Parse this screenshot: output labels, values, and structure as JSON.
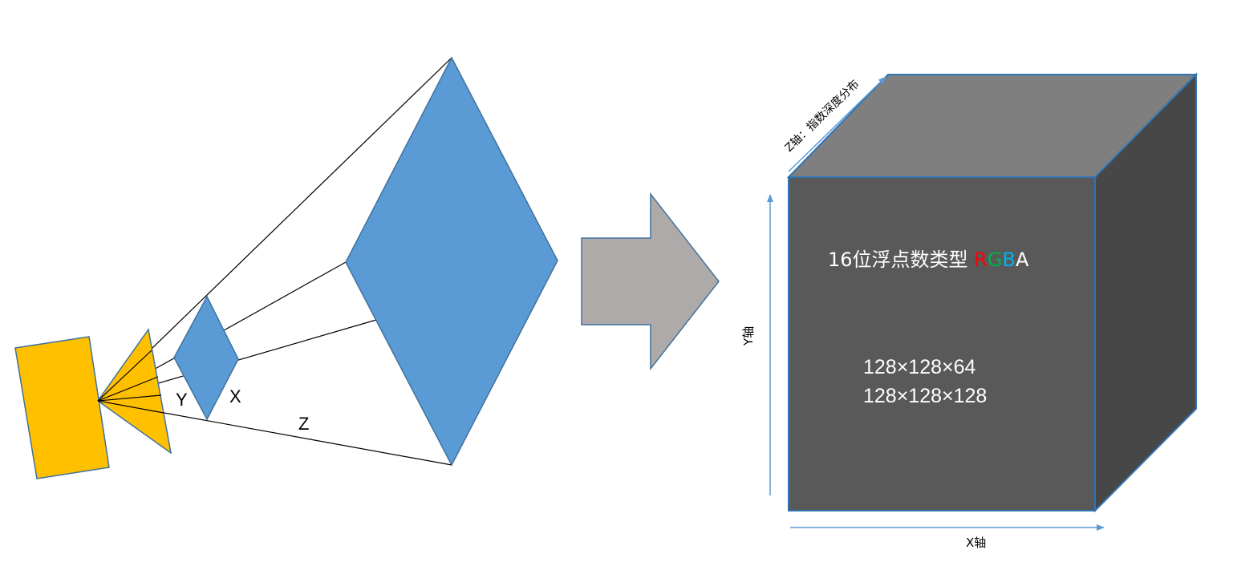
{
  "frustum": {
    "label_y": "Y",
    "label_x": "X",
    "label_z": "Z",
    "colors": {
      "camera": "#FFC000",
      "camera_stroke": "#41719C",
      "plane": "#5B9BD5",
      "plane_stroke": "#41719C",
      "lines": "#000000"
    }
  },
  "arrow": {
    "color": "#AEAAAA",
    "stroke": "#41719C"
  },
  "cube": {
    "format_text": "16位浮点数类型 ",
    "rgba": [
      {
        "char": "R",
        "color": "#FF0000"
      },
      {
        "char": "G",
        "color": "#00B050"
      },
      {
        "char": "B",
        "color": "#00B0F0"
      },
      {
        "char": "A",
        "color": "#FFFFFF"
      }
    ],
    "size_line_1": "128×128×64",
    "size_line_2": "128×128×128",
    "colors": {
      "front": "#595959",
      "top": "#7F7F7F",
      "side": "#474747",
      "edge": "#2E75B6",
      "text": "#FFFFFF"
    }
  },
  "axes": {
    "x_label": "X轴",
    "y_label": "Y轴",
    "z_label": "Z轴：指数深度分布",
    "color": "#5B9BD5"
  }
}
